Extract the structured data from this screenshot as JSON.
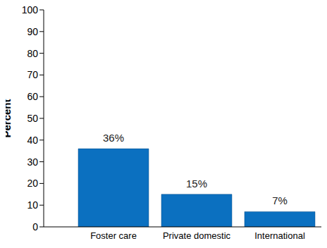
{
  "chart_data": {
    "type": "bar",
    "y_label": "Percent",
    "categories": [
      "Foster care",
      "Private domestic",
      "International"
    ],
    "values": [
      36,
      15,
      7
    ],
    "value_labels": [
      "36%",
      "15%",
      "7%"
    ],
    "data_labels": true,
    "color": "#0b70c0",
    "ylim": [
      0,
      100
    ],
    "yticks": [
      0,
      10,
      20,
      30,
      40,
      50,
      60,
      70,
      80,
      90,
      100
    ],
    "grid": false
  }
}
